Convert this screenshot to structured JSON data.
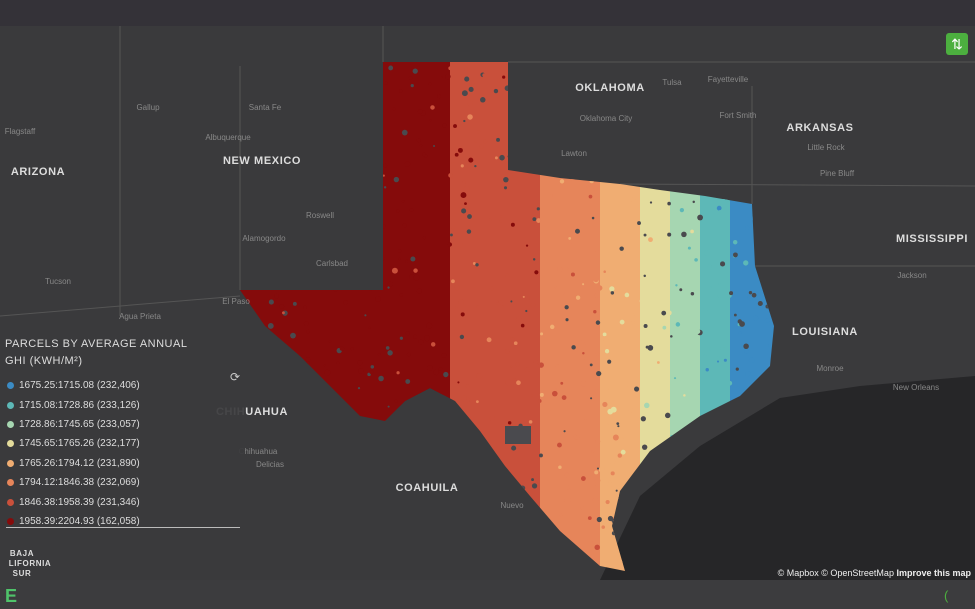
{
  "state_labels": [
    "OKLAHOMA",
    "ARKANSAS",
    "NEW MEXICO",
    "ARIZONA",
    "MISSISSIPPI",
    "LOUISIANA",
    "CHIHUAHUA",
    "COAHUILA",
    "BAJA",
    "LIFORNIA",
    "SUR"
  ],
  "city_labels": [
    "Flagstaff",
    "Santa Fe",
    "Albuquerque",
    "Tucson",
    "Tulsa",
    "Oklahoma City",
    "Fayetteville",
    "Fort Smith",
    "Little Rock",
    "Pine Bluff",
    "Jackson",
    "New Orleans",
    "El Paso",
    "Roswell",
    "Carlsbad",
    "Alamogordo",
    "Lawton",
    "Monroe",
    "Nuevo",
    "Chihuahua",
    "Delicias",
    "Gallup",
    "Agua Prieta"
  ],
  "legend": {
    "title": "PARCELS BY AVERAGE ANNUAL GHI (KWH/M²)",
    "items": [
      {
        "label": "1675.25:1715.08 (232,406)",
        "color": "#3b8bc4"
      },
      {
        "label": "1715.08:1728.86 (233,126)",
        "color": "#5db8b7"
      },
      {
        "label": "1728.86:1745.65 (233,057)",
        "color": "#a6d6b1"
      },
      {
        "label": "1745.65:1765.26 (232,177)",
        "color": "#e4dc9c"
      },
      {
        "label": "1765.26:1794.12 (231,890)",
        "color": "#f0ad72"
      },
      {
        "label": "1794.12:1846.38 (232,069)",
        "color": "#e6855a"
      },
      {
        "label": "1846.38:1958.39 (231,346)",
        "color": "#c9503b"
      },
      {
        "label": "1958.39:2204.93 (162,058)",
        "color": "#850b0b"
      }
    ]
  },
  "attribution": {
    "credits": "© Mapbox © OpenStreetMap",
    "link": "Improve this map"
  }
}
